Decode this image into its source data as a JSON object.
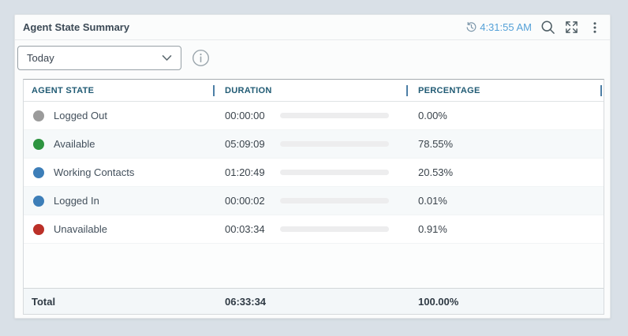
{
  "widget": {
    "title": "Agent State Summary",
    "last_refresh_time": "4:31:55 AM",
    "filter_dropdown": {
      "selected_value": "Today"
    },
    "icons": {
      "refresh": "history-clock-icon",
      "search": "magnifier-icon",
      "expand": "expand-arrows-icon",
      "menu": "kebab-menu-icon",
      "info": "info-circle-icon",
      "dropdown_chevron": "chevron-down-icon"
    }
  },
  "table": {
    "columns": [
      {
        "label": "AGENT STATE"
      },
      {
        "label": "DURATION"
      },
      {
        "label": "PERCENTAGE"
      }
    ],
    "rows": [
      {
        "state": "Logged Out",
        "dot_color": "#9b9b9b",
        "bar_color": "#7f7f7f",
        "duration": "00:00:00",
        "percent": 0.0,
        "percent_label": "0.00%"
      },
      {
        "state": "Available",
        "dot_color": "#2d9440",
        "bar_color": "#2d9440",
        "duration": "05:09:09",
        "percent": 78.55,
        "percent_label": "78.55%"
      },
      {
        "state": "Working Contacts",
        "dot_color": "#3d7eb8",
        "bar_color": "#3d7eb8",
        "duration": "01:20:49",
        "percent": 20.53,
        "percent_label": "20.53%"
      },
      {
        "state": "Logged In",
        "dot_color": "#3d7eb8",
        "bar_color": "#3d7eb8",
        "duration": "00:00:02",
        "percent": 0.01,
        "percent_label": "0.01%"
      },
      {
        "state": "Unavailable",
        "dot_color": "#bb3028",
        "bar_color": "#bb3028",
        "duration": "00:03:34",
        "percent": 0.91,
        "percent_label": "0.91%"
      }
    ],
    "total": {
      "label": "Total",
      "duration": "06:33:34",
      "percent_label": "100.00%"
    }
  },
  "colors": {
    "page_background": "#d9e0e7",
    "card_background": "#fbfcfc",
    "timestamp_text": "#55a1d8",
    "column_header_text": "#215b74",
    "column_separator": "#4d7fa6",
    "bar_track": "#ededee",
    "total_row_background": "#f3f7f9"
  }
}
